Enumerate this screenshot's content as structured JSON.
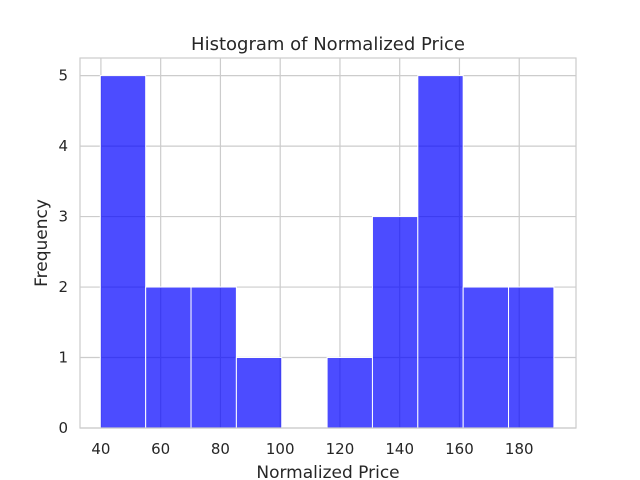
{
  "chart_data": {
    "type": "bar",
    "title": "Histogram of Normalized Price",
    "xlabel": "Normalized Price",
    "ylabel": "Frequency",
    "xlim": [
      33,
      199
    ],
    "ylim": [
      0,
      5.25
    ],
    "grid": true,
    "colors": {
      "bar_fill": "#0000ff",
      "bar_opacity": 0.7,
      "bar_edge": "#ffffff",
      "grid": "#cccccc",
      "frame": "#cccccc",
      "text": "#262626"
    },
    "bins": [
      {
        "x0": 39.8,
        "x1": 54.98,
        "count": 5
      },
      {
        "x0": 54.98,
        "x1": 70.16,
        "count": 2
      },
      {
        "x0": 70.16,
        "x1": 85.34,
        "count": 2
      },
      {
        "x0": 85.34,
        "x1": 100.52,
        "count": 1
      },
      {
        "x0": 100.52,
        "x1": 115.7,
        "count": 0
      },
      {
        "x0": 115.7,
        "x1": 130.88,
        "count": 1
      },
      {
        "x0": 130.88,
        "x1": 146.06,
        "count": 3
      },
      {
        "x0": 146.06,
        "x1": 161.24,
        "count": 5
      },
      {
        "x0": 161.24,
        "x1": 176.42,
        "count": 2
      },
      {
        "x0": 176.42,
        "x1": 191.6,
        "count": 2
      }
    ],
    "xticks": [
      40,
      60,
      80,
      100,
      120,
      140,
      160,
      180
    ],
    "xtick_labels": [
      "40",
      "60",
      "80",
      "100",
      "120",
      "140",
      "160",
      "180"
    ],
    "yticks": [
      0,
      1,
      2,
      3,
      4,
      5
    ],
    "ytick_labels": [
      "0",
      "1",
      "2",
      "3",
      "4",
      "5"
    ]
  }
}
